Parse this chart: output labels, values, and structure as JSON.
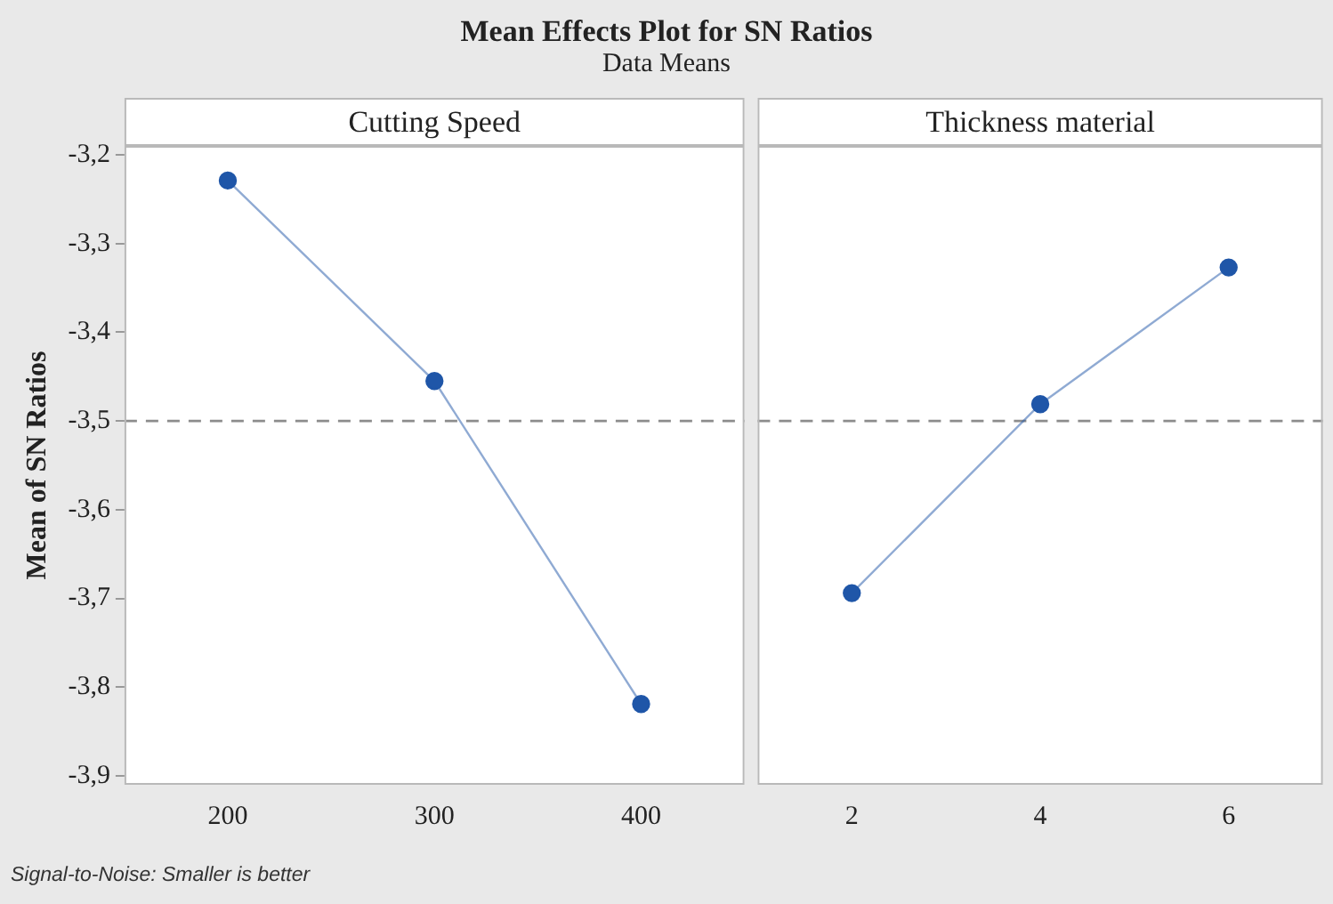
{
  "chart_data": [
    {
      "type": "other",
      "title": "Mean Effects Plot for SN Ratios",
      "subtitle": "Data Means",
      "annotations": [
        "Signal-to-Noise: Smaller is better"
      ]
    },
    {
      "type": "line",
      "title": "Cutting Speed",
      "ylabel": "Mean of SN Ratios",
      "categories": [
        "200",
        "300",
        "400"
      ],
      "values": [
        -3.229,
        -3.455,
        -3.819
      ],
      "color": "#1f56a8",
      "marker": "circle",
      "ylim": [
        -3.91,
        -3.19
      ],
      "yticks": [
        {
          "value": -3.2,
          "label": "-3,2"
        },
        {
          "value": -3.3,
          "label": "-3,3"
        },
        {
          "value": -3.4,
          "label": "-3,4"
        },
        {
          "value": -3.5,
          "label": "-3,5"
        },
        {
          "value": -3.6,
          "label": "-3,6"
        },
        {
          "value": -3.7,
          "label": "-3,7"
        },
        {
          "value": -3.8,
          "label": "-3,8"
        },
        {
          "value": -3.9,
          "label": "-3,9"
        }
      ],
      "ref_lines": [
        {
          "axis": "y",
          "value": -3.5,
          "color": "#8c8c8c",
          "line_style": "dashed"
        }
      ]
    },
    {
      "type": "line",
      "title": "Thickness material",
      "categories": [
        "2",
        "4",
        "6"
      ],
      "values": [
        -3.694,
        -3.481,
        -3.327
      ],
      "color": "#1f56a8",
      "marker": "circle",
      "ylim": [
        -3.91,
        -3.19
      ],
      "tick_labels": "x",
      "ref_lines": [
        {
          "axis": "y",
          "value": -3.5,
          "color": "#8c8c8c",
          "line_style": "dashed"
        }
      ]
    }
  ]
}
